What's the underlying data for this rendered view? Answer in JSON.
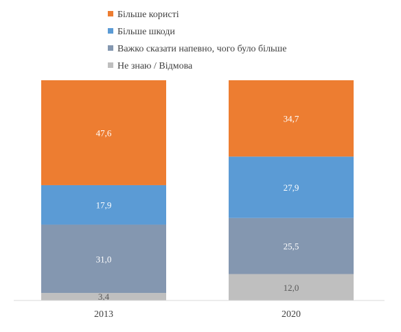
{
  "chart_data": {
    "type": "bar",
    "stacked": true,
    "normalized": true,
    "categories": [
      "2013",
      "2020"
    ],
    "series": [
      {
        "name": "Більше користі",
        "color": "#ED7D31",
        "values": [
          47.6,
          34.7
        ],
        "labels": [
          "47,6",
          "34,7"
        ]
      },
      {
        "name": "Більше шкоди",
        "color": "#5B9BD5",
        "values": [
          17.9,
          27.9
        ],
        "labels": [
          "17,9",
          "27,9"
        ]
      },
      {
        "name": "Важко сказати напевно, чого було більше",
        "color": "#8497B0",
        "values": [
          31.0,
          25.5
        ],
        "labels": [
          "31,0",
          "25,5"
        ]
      },
      {
        "name": "Не знаю / Відмова",
        "color": "#BFBFBF",
        "values": [
          3.4,
          12.0
        ],
        "labels": [
          "3,4",
          "12,0"
        ]
      }
    ],
    "ylim": [
      0,
      100
    ],
    "grid": false,
    "legend_position": "top-center"
  }
}
